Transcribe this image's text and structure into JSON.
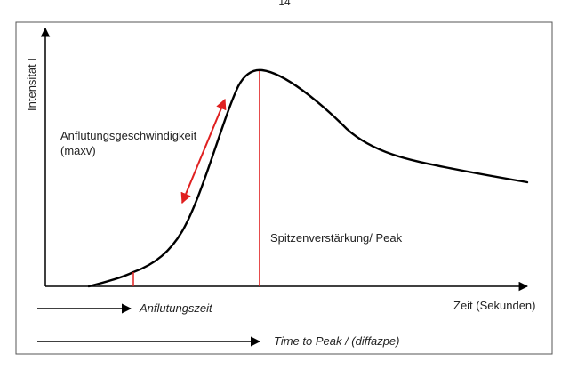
{
  "page_number": "14",
  "y_axis_label": "Intensität I",
  "x_axis_label": "Zeit (Sekunden)",
  "annotations": {
    "slope_line1": "Anflutungsgeschwindigkeit",
    "slope_line2": "(maxv)",
    "peak": "Spitzenverstärkung/ Peak"
  },
  "timelines": {
    "rise_time": "Anflutungszeit",
    "time_to_peak": "Time to Peak / (diffazpe)"
  },
  "colors": {
    "curve": "#000000",
    "marker": "#e02020",
    "axis": "#000000",
    "frame": "#555555"
  }
}
